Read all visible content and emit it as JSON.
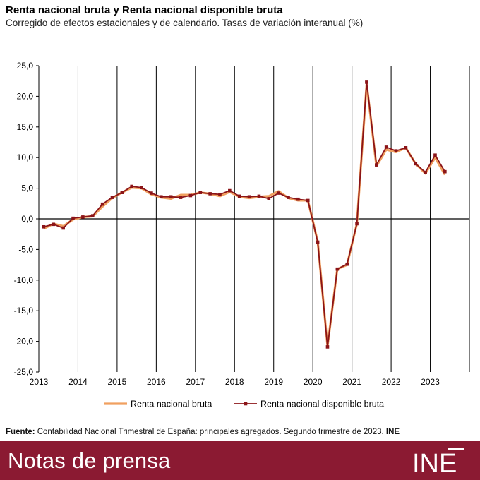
{
  "header": {
    "title": "Renta nacional bruta y Renta nacional disponible bruta",
    "subtitle": "Corregido de efectos estacionales y de calendario. Tasas de variación interanual (%)"
  },
  "source": {
    "label": "Fuente:",
    "text": " Contabilidad Nacional Trimestral de España: principales agregados. Segundo trimestre de 2023. ",
    "brand": "INE"
  },
  "footer": {
    "label": "Notas de prensa",
    "logo_text": "INE"
  },
  "chart_data": {
    "type": "line",
    "title": "Renta nacional bruta y Renta nacional disponible bruta",
    "xlabel": "",
    "ylabel": "",
    "ylim": [
      -25,
      25
    ],
    "yticks": [
      -25,
      -20,
      -15,
      -10,
      -5,
      0,
      5,
      10,
      15,
      20,
      25
    ],
    "ytick_labels": [
      "-25,0",
      "-20,0",
      "-15,0",
      "-10,0",
      "-5,0",
      "0,0",
      "5,0",
      "10,0",
      "15,0",
      "20,0",
      "25,0"
    ],
    "year_labels": [
      "2013",
      "2014",
      "2015",
      "2016",
      "2017",
      "2018",
      "2019",
      "2020",
      "2021",
      "2022",
      "2023"
    ],
    "quarters_per_year": 4,
    "legend_position": "bottom",
    "colors": {
      "rnb": "#f0a060",
      "rndb": "#8b1418",
      "axis": "#000000"
    },
    "series": [
      {
        "name": "Renta nacional bruta",
        "marker": "none",
        "values": [
          -1.6,
          -0.8,
          -1.2,
          -0.1,
          0.3,
          0.4,
          2.0,
          3.4,
          4.3,
          5.1,
          5.0,
          4.0,
          3.5,
          3.3,
          3.9,
          3.9,
          4.3,
          4.1,
          3.7,
          4.4,
          3.6,
          3.4,
          3.6,
          3.7,
          4.5,
          3.4,
          3.0,
          3.0,
          -3.7,
          -20.8,
          -8.2,
          -7.5,
          -0.8,
          22.0,
          8.6,
          11.3,
          10.9,
          11.6,
          9.0,
          7.4,
          10.0,
          7.2
        ]
      },
      {
        "name": "Renta nacional disponible bruta",
        "marker": "square",
        "values": [
          -1.3,
          -0.9,
          -1.5,
          0.1,
          0.3,
          0.5,
          2.4,
          3.5,
          4.3,
          5.3,
          5.1,
          4.2,
          3.6,
          3.6,
          3.5,
          3.8,
          4.3,
          4.1,
          4.0,
          4.6,
          3.7,
          3.6,
          3.7,
          3.3,
          4.2,
          3.5,
          3.2,
          3.0,
          -3.8,
          -20.9,
          -8.2,
          -7.4,
          -0.8,
          22.3,
          8.8,
          11.7,
          11.1,
          11.6,
          9.0,
          7.6,
          10.4,
          7.7
        ]
      }
    ]
  }
}
